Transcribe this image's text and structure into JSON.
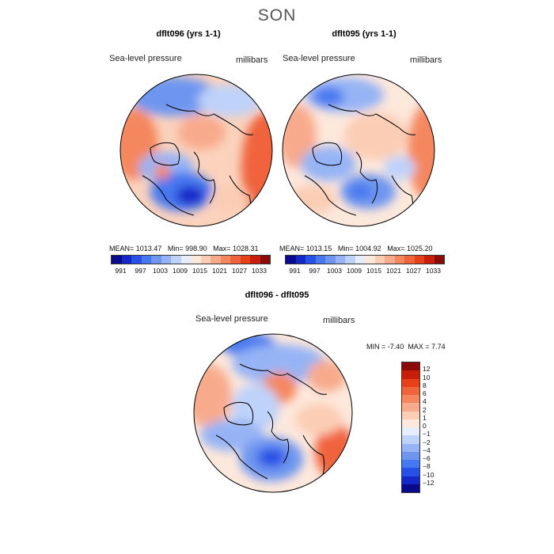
{
  "season": "SON",
  "panels": {
    "left": {
      "title": "dflt096 (yrs 1-1)",
      "variable": "Sea-level pressure",
      "units": "millibars",
      "stats": {
        "mean_label": "MEAN=",
        "mean": "1013.47",
        "min_label": "Min=",
        "min": "998.90",
        "max_label": "Max=",
        "max": "1028.31"
      }
    },
    "right": {
      "title": "dflt095 (yrs 1-1)",
      "variable": "Sea-level pressure",
      "units": "millibars",
      "stats": {
        "mean_label": "MEAN=",
        "mean": "1013.15",
        "min_label": "Min=",
        "min": "1004.92",
        "max_label": "Max=",
        "max": "1025.20"
      }
    },
    "diff": {
      "title": "dflt096 - dflt095",
      "variable": "Sea-level pressure",
      "units": "millibars",
      "stats": {
        "min_label": "MIN =",
        "min": "-7.40",
        "max_label": "MAX =",
        "max": "7.74"
      }
    }
  },
  "abs_colorbar": {
    "tick_labels": [
      "991",
      "997",
      "1003",
      "1009",
      "1015",
      "1021",
      "1027",
      "1033"
    ],
    "colors": [
      "#0a0a8c",
      "#1428c8",
      "#2850e6",
      "#4678f0",
      "#6e96f0",
      "#96b4f5",
      "#bed2fa",
      "#e6eefd",
      "#fde8dc",
      "#fbcdb4",
      "#f8aa8c",
      "#f5875f",
      "#f0643c",
      "#e64119",
      "#c81e0a",
      "#8c0a0a"
    ]
  },
  "diff_colorbar": {
    "levels": [
      "12",
      "10",
      "8",
      "6",
      "4",
      "2",
      "1",
      "0",
      "−1",
      "−2",
      "−4",
      "−6",
      "−8",
      "−10",
      "−12"
    ],
    "colors": [
      "#8c0a0a",
      "#c81e0a",
      "#e64119",
      "#f0643c",
      "#f5875f",
      "#f8aa8c",
      "#fbcdb4",
      "#fde8dc",
      "#e6eefd",
      "#bed2fa",
      "#96b4f5",
      "#6e96f0",
      "#4678f0",
      "#2850e6",
      "#1428c8",
      "#0a0a8c"
    ]
  }
}
